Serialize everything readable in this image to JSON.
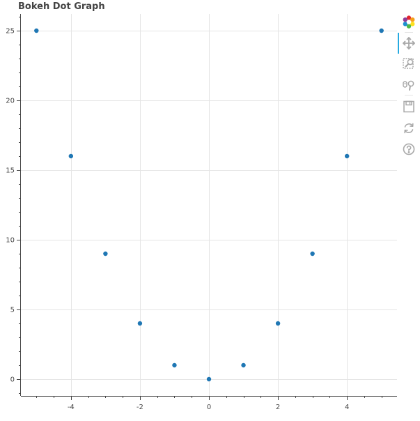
{
  "chart_data": {
    "type": "scatter",
    "title": "Bokeh Dot Graph",
    "xlabel": "",
    "ylabel": "",
    "x": [
      -5,
      -4,
      -3,
      -2,
      -1,
      0,
      1,
      2,
      3,
      4,
      5
    ],
    "y": [
      25,
      16,
      9,
      4,
      1,
      0,
      1,
      4,
      9,
      16,
      25
    ],
    "xlim": [
      -5.45,
      5.45
    ],
    "ylim": [
      -1.2,
      26.2
    ],
    "xticks": [
      -4,
      -2,
      0,
      2,
      4
    ],
    "yticks": [
      0,
      5,
      10,
      15,
      20,
      25
    ],
    "xminor_step": 0.5,
    "yminor_step": 1,
    "grid": true,
    "legend": "none",
    "marker": "circle",
    "color": "#1f77b4"
  },
  "colors": {
    "grid": "#e5e5e5",
    "axis": "#444444",
    "active_tool": "#26aae1",
    "tool_icon": "#a8a8a8"
  },
  "toolbar": {
    "tools": [
      {
        "name": "bokeh-logo",
        "icon": "bokeh-logo-icon"
      },
      {
        "name": "pan",
        "icon": "pan-icon"
      },
      {
        "name": "box-zoom",
        "icon": "box-zoom-icon"
      },
      {
        "name": "wheel-zoom",
        "icon": "wheel-zoom-icon"
      },
      {
        "name": "save",
        "icon": "save-icon"
      },
      {
        "name": "reset",
        "icon": "reset-icon"
      },
      {
        "name": "help",
        "icon": "help-icon"
      }
    ]
  }
}
